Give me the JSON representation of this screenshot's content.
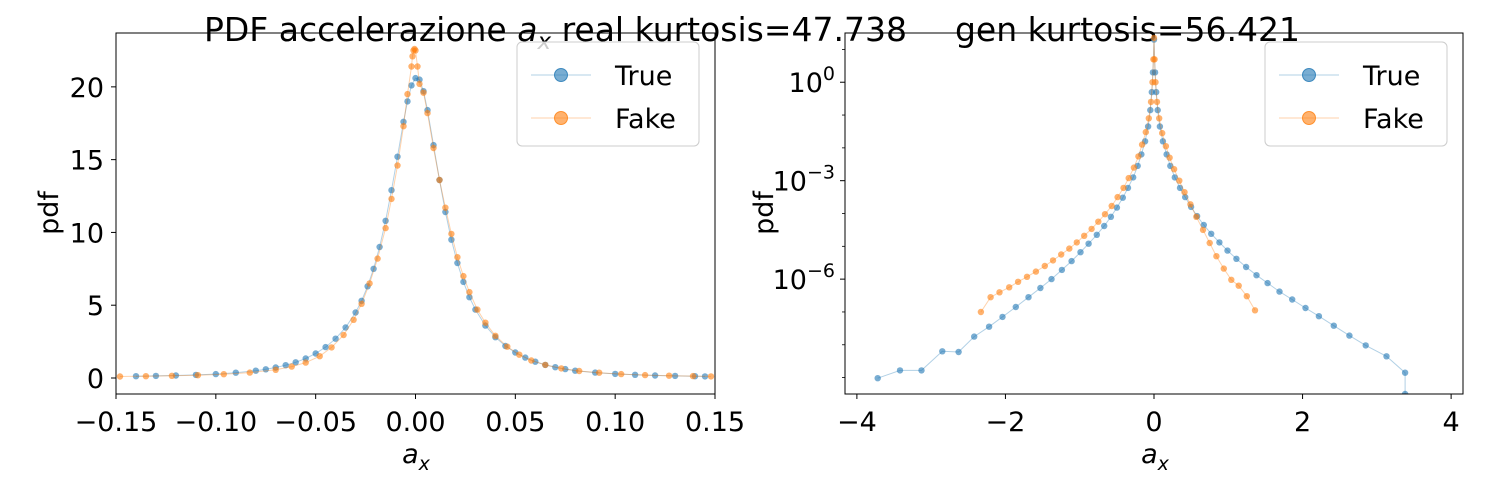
{
  "figure": {
    "title_prefix": "PDF accelerazione ",
    "title_var": "a",
    "title_sub": "x",
    "title_real": " real kurtosis=47.738",
    "title_gen": "gen kurtosis=56.421"
  },
  "colors": {
    "true": "#1f77b4",
    "fake": "#ff7f0e"
  },
  "chart_data": [
    {
      "type": "line",
      "yscale": "linear",
      "xlabel": "a",
      "xlabel_sub": "x",
      "ylabel": "pdf",
      "xlim": [
        -0.15,
        0.15
      ],
      "ylim": [
        -1.1,
        23.7
      ],
      "xticks": [
        -0.15,
        -0.1,
        -0.05,
        0.0,
        0.05,
        0.1,
        0.15
      ],
      "xtick_labels": [
        "−0.15",
        "−0.10",
        "−0.05",
        "0.00",
        "0.05",
        "0.10",
        "0.15"
      ],
      "yticks": [
        0,
        5,
        10,
        15,
        20
      ],
      "ytick_labels": [
        "0",
        "5",
        "10",
        "15",
        "20"
      ],
      "legend": {
        "position": "top-right",
        "entries": [
          "True",
          "Fake"
        ]
      },
      "series": [
        {
          "name": "True",
          "points": [
            [
              -0.14,
              0.12
            ],
            [
              -0.13,
              0.14
            ],
            [
              -0.12,
              0.17
            ],
            [
              -0.11,
              0.21
            ],
            [
              -0.1,
              0.27
            ],
            [
              -0.09,
              0.36
            ],
            [
              -0.08,
              0.5
            ],
            [
              -0.075,
              0.6
            ],
            [
              -0.07,
              0.72
            ],
            [
              -0.065,
              0.88
            ],
            [
              -0.06,
              1.08
            ],
            [
              -0.055,
              1.34
            ],
            [
              -0.05,
              1.68
            ],
            [
              -0.045,
              2.12
            ],
            [
              -0.04,
              2.7
            ],
            [
              -0.035,
              3.47
            ],
            [
              -0.03,
              4.5
            ],
            [
              -0.027,
              5.3
            ],
            [
              -0.024,
              6.3
            ],
            [
              -0.021,
              7.5
            ],
            [
              -0.018,
              9.0
            ],
            [
              -0.015,
              10.8
            ],
            [
              -0.012,
              12.9
            ],
            [
              -0.009,
              15.2
            ],
            [
              -0.006,
              17.6
            ],
            [
              -0.004,
              19.0
            ],
            [
              -0.002,
              20.1
            ],
            [
              0.0,
              20.6
            ],
            [
              0.002,
              20.5
            ],
            [
              0.004,
              19.7
            ],
            [
              0.006,
              18.4
            ],
            [
              0.009,
              16.0
            ],
            [
              0.012,
              13.6
            ],
            [
              0.015,
              11.4
            ],
            [
              0.018,
              9.5
            ],
            [
              0.021,
              7.9
            ],
            [
              0.024,
              6.6
            ],
            [
              0.027,
              5.55
            ],
            [
              0.03,
              4.7
            ],
            [
              0.035,
              3.6
            ],
            [
              0.04,
              2.8
            ],
            [
              0.045,
              2.2
            ],
            [
              0.05,
              1.75
            ],
            [
              0.055,
              1.4
            ],
            [
              0.06,
              1.12
            ],
            [
              0.065,
              0.9
            ],
            [
              0.07,
              0.74
            ],
            [
              0.075,
              0.61
            ],
            [
              0.08,
              0.5
            ],
            [
              0.09,
              0.37
            ],
            [
              0.1,
              0.28
            ],
            [
              0.11,
              0.22
            ],
            [
              0.12,
              0.17
            ],
            [
              0.13,
              0.14
            ],
            [
              0.14,
              0.12
            ],
            [
              0.145,
              0.11
            ]
          ]
        },
        {
          "name": "Fake",
          "points": [
            [
              -0.148,
              0.1
            ],
            [
              -0.135,
              0.12
            ],
            [
              -0.122,
              0.15
            ],
            [
              -0.109,
              0.19
            ],
            [
              -0.096,
              0.26
            ],
            [
              -0.083,
              0.37
            ],
            [
              -0.07,
              0.56
            ],
            [
              -0.062,
              0.78
            ],
            [
              -0.055,
              1.06
            ],
            [
              -0.048,
              1.5
            ],
            [
              -0.042,
              2.1
            ],
            [
              -0.036,
              2.95
            ],
            [
              -0.031,
              4.0
            ],
            [
              -0.027,
              5.1
            ],
            [
              -0.023,
              6.5
            ],
            [
              -0.019,
              8.2
            ],
            [
              -0.015,
              10.3
            ],
            [
              -0.012,
              12.3
            ],
            [
              -0.009,
              14.6
            ],
            [
              -0.006,
              17.3
            ],
            [
              -0.004,
              19.5
            ],
            [
              -0.002,
              21.4
            ],
            [
              -0.0015,
              22.1
            ],
            [
              -0.001,
              22.5
            ],
            [
              -0.0005,
              22.6
            ],
            [
              0.0,
              22.5
            ],
            [
              0.001,
              21.4
            ],
            [
              0.002,
              20.2
            ],
            [
              0.004,
              19.6
            ],
            [
              0.006,
              18.2
            ],
            [
              0.009,
              15.8
            ],
            [
              0.012,
              13.6
            ],
            [
              0.015,
              11.7
            ],
            [
              0.018,
              9.9
            ],
            [
              0.021,
              8.3
            ],
            [
              0.024,
              7.0
            ],
            [
              0.027,
              5.9
            ],
            [
              0.031,
              4.7
            ],
            [
              0.035,
              3.8
            ],
            [
              0.04,
              2.9
            ],
            [
              0.046,
              2.15
            ],
            [
              0.052,
              1.6
            ],
            [
              0.058,
              1.2
            ],
            [
              0.065,
              0.9
            ],
            [
              0.073,
              0.66
            ],
            [
              0.082,
              0.48
            ],
            [
              0.092,
              0.36
            ],
            [
              0.103,
              0.27
            ],
            [
              0.115,
              0.2
            ],
            [
              0.127,
              0.16
            ],
            [
              0.139,
              0.13
            ],
            [
              0.148,
              0.11
            ]
          ]
        }
      ]
    },
    {
      "type": "line",
      "yscale": "log",
      "xlabel": "a",
      "xlabel_sub": "x",
      "ylabel": "pdf",
      "xlim": [
        -4.16,
        4.16
      ],
      "ylim_log10": [
        -9.5,
        1.5
      ],
      "xticks": [
        -4,
        -2,
        0,
        2,
        4
      ],
      "xtick_labels": [
        "−4",
        "−2",
        "0",
        "2",
        "4"
      ],
      "yticks_log10": [
        0,
        -3,
        -6
      ],
      "ytick_labels": [
        {
          "base": "10",
          "exp": "0"
        },
        {
          "base": "10",
          "exp": "−3"
        },
        {
          "base": "10",
          "exp": "−6"
        }
      ],
      "legend": {
        "position": "top-right",
        "entries": [
          "True",
          "Fake"
        ]
      },
      "series": [
        {
          "name": "True",
          "points_log10": [
            [
              -3.72,
              -9.02
            ],
            [
              -3.42,
              -8.78
            ],
            [
              -3.13,
              -8.78
            ],
            [
              -2.85,
              -8.2
            ],
            [
              -2.63,
              -8.22
            ],
            [
              -2.42,
              -7.75
            ],
            [
              -2.22,
              -7.45
            ],
            [
              -2.04,
              -7.15
            ],
            [
              -1.86,
              -6.85
            ],
            [
              -1.69,
              -6.55
            ],
            [
              -1.53,
              -6.27
            ],
            [
              -1.38,
              -6.0
            ],
            [
              -1.24,
              -5.72
            ],
            [
              -1.11,
              -5.45
            ],
            [
              -0.99,
              -5.18
            ],
            [
              -0.88,
              -4.92
            ],
            [
              -0.77,
              -4.65
            ],
            [
              -0.67,
              -4.38
            ],
            [
              -0.58,
              -4.1
            ],
            [
              -0.5,
              -3.82
            ],
            [
              -0.42,
              -3.52
            ],
            [
              -0.35,
              -3.22
            ],
            [
              -0.28,
              -2.9
            ],
            [
              -0.22,
              -2.55
            ],
            [
              -0.17,
              -2.2
            ],
            [
              -0.12,
              -1.8
            ],
            [
              -0.08,
              -1.35
            ],
            [
              -0.05,
              -0.85
            ],
            [
              -0.03,
              -0.3
            ],
            [
              -0.015,
              0.3
            ],
            [
              0.0,
              1.3
            ],
            [
              0.015,
              0.3
            ],
            [
              0.03,
              -0.3
            ],
            [
              0.05,
              -0.85
            ],
            [
              0.08,
              -1.35
            ],
            [
              0.12,
              -1.8
            ],
            [
              0.17,
              -2.2
            ],
            [
              0.22,
              -2.55
            ],
            [
              0.28,
              -2.9
            ],
            [
              0.35,
              -3.22
            ],
            [
              0.42,
              -3.5
            ],
            [
              0.5,
              -3.8
            ],
            [
              0.58,
              -4.08
            ],
            [
              0.67,
              -4.35
            ],
            [
              0.77,
              -4.62
            ],
            [
              0.88,
              -4.88
            ],
            [
              0.99,
              -5.13
            ],
            [
              1.11,
              -5.38
            ],
            [
              1.24,
              -5.63
            ],
            [
              1.38,
              -5.88
            ],
            [
              1.53,
              -6.12
            ],
            [
              1.69,
              -6.38
            ],
            [
              1.86,
              -6.62
            ],
            [
              2.04,
              -6.88
            ],
            [
              2.22,
              -7.13
            ],
            [
              2.42,
              -7.42
            ],
            [
              2.63,
              -7.72
            ],
            [
              2.85,
              -8.02
            ],
            [
              3.13,
              -8.35
            ],
            [
              3.38,
              -8.85
            ],
            [
              3.38,
              -9.5
            ]
          ]
        },
        {
          "name": "Fake",
          "points_log10": [
            [
              -2.33,
              -7.0
            ],
            [
              -2.2,
              -6.55
            ],
            [
              -2.08,
              -6.4
            ],
            [
              -1.95,
              -6.25
            ],
            [
              -1.83,
              -6.08
            ],
            [
              -1.71,
              -5.93
            ],
            [
              -1.59,
              -5.77
            ],
            [
              -1.47,
              -5.6
            ],
            [
              -1.36,
              -5.43
            ],
            [
              -1.25,
              -5.25
            ],
            [
              -1.14,
              -5.07
            ],
            [
              -1.04,
              -4.88
            ],
            [
              -0.94,
              -4.68
            ],
            [
              -0.84,
              -4.47
            ],
            [
              -0.75,
              -4.25
            ],
            [
              -0.66,
              -4.02
            ],
            [
              -0.57,
              -3.77
            ],
            [
              -0.49,
              -3.5
            ],
            [
              -0.41,
              -3.22
            ],
            [
              -0.34,
              -2.92
            ],
            [
              -0.27,
              -2.6
            ],
            [
              -0.21,
              -2.26
            ],
            [
              -0.16,
              -1.9
            ],
            [
              -0.11,
              -1.52
            ],
            [
              -0.07,
              -1.1
            ],
            [
              -0.04,
              -0.6
            ],
            [
              -0.02,
              0.0
            ],
            [
              -0.008,
              0.7
            ],
            [
              0.0,
              1.35
            ],
            [
              0.008,
              0.7
            ],
            [
              0.02,
              0.0
            ],
            [
              0.04,
              -0.6
            ],
            [
              0.07,
              -1.1
            ],
            [
              0.11,
              -1.55
            ],
            [
              0.16,
              -1.95
            ],
            [
              0.21,
              -2.3
            ],
            [
              0.27,
              -2.65
            ],
            [
              0.34,
              -3.0
            ],
            [
              0.41,
              -3.35
            ],
            [
              0.49,
              -3.72
            ],
            [
              0.57,
              -4.1
            ],
            [
              0.66,
              -4.5
            ],
            [
              0.75,
              -4.9
            ],
            [
              0.84,
              -5.3
            ],
            [
              0.94,
              -5.68
            ],
            [
              1.04,
              -6.02
            ],
            [
              1.14,
              -6.2
            ],
            [
              1.25,
              -6.52
            ],
            [
              1.36,
              -6.95
            ]
          ]
        }
      ]
    }
  ]
}
